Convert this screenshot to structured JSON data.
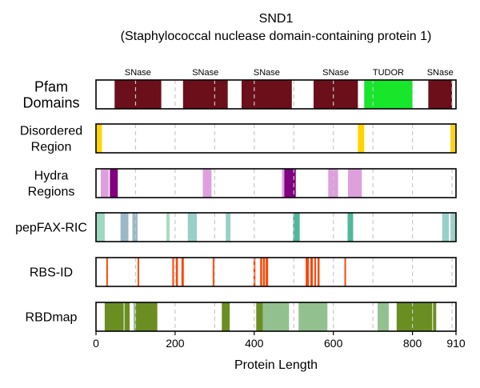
{
  "chart_data": {
    "type": "feature-track",
    "title": "SND1",
    "subtitle": "(Staphylococcal nuclease domain-containing protein 1)",
    "xlabel": "Protein Length",
    "xlim": [
      0,
      910
    ],
    "x_ticks": [
      0,
      200,
      400,
      600,
      800,
      910
    ],
    "gridlines": [
      100,
      200,
      300,
      400,
      500,
      600,
      700,
      800,
      900
    ],
    "tracks": [
      {
        "label_lines": [
          "Pfam",
          "Domains"
        ],
        "big_label": true,
        "segments": [
          {
            "start": 47,
            "end": 165,
            "color": "#6b0f1a",
            "label": "SNase"
          },
          {
            "start": 220,
            "end": 333,
            "color": "#6b0f1a",
            "label": "SNase"
          },
          {
            "start": 368,
            "end": 495,
            "color": "#6b0f1a",
            "label": "SNase"
          },
          {
            "start": 550,
            "end": 662,
            "color": "#6b0f1a",
            "label": "SNase"
          },
          {
            "start": 678,
            "end": 800,
            "color": "#17e62b",
            "label": "TUDOR"
          },
          {
            "start": 840,
            "end": 900,
            "color": "#6b0f1a",
            "label": "SNase"
          }
        ]
      },
      {
        "label_lines": [
          "Disordered",
          "Region"
        ],
        "segments": [
          {
            "start": 0,
            "end": 15,
            "color": "#ffd500"
          },
          {
            "start": 662,
            "end": 678,
            "color": "#ffd500"
          },
          {
            "start": 896,
            "end": 910,
            "color": "#ffd500"
          }
        ]
      },
      {
        "label_lines": [
          "Hydra",
          "Regions"
        ],
        "segments": [
          {
            "start": 12,
            "end": 32,
            "color": "#dda0dd"
          },
          {
            "start": 35,
            "end": 55,
            "color": "#800080"
          },
          {
            "start": 270,
            "end": 292,
            "color": "#dda0dd"
          },
          {
            "start": 470,
            "end": 476,
            "color": "#dda0dd"
          },
          {
            "start": 476,
            "end": 505,
            "color": "#800080"
          },
          {
            "start": 587,
            "end": 612,
            "color": "#dda0dd"
          },
          {
            "start": 637,
            "end": 672,
            "color": "#dda0dd"
          }
        ]
      },
      {
        "label_lines": [
          "pepFAX-RIC"
        ],
        "segments": [
          {
            "start": 0,
            "end": 22,
            "color": "#9fd8c2"
          },
          {
            "start": 62,
            "end": 82,
            "color": "#9ab8c8"
          },
          {
            "start": 92,
            "end": 105,
            "color": "#9ab8c8"
          },
          {
            "start": 178,
            "end": 186,
            "color": "#a8dcc0"
          },
          {
            "start": 232,
            "end": 255,
            "color": "#98d0c8"
          },
          {
            "start": 328,
            "end": 340,
            "color": "#98d0c8"
          },
          {
            "start": 498,
            "end": 515,
            "color": "#4fb89a"
          },
          {
            "start": 636,
            "end": 650,
            "color": "#4fb89a"
          },
          {
            "start": 875,
            "end": 892,
            "color": "#98d0c8"
          },
          {
            "start": 896,
            "end": 910,
            "color": "#98d0c8"
          }
        ]
      },
      {
        "label_lines": [
          "RBS-ID"
        ],
        "segments": [
          {
            "start": 26,
            "end": 30,
            "color": "#ff4500"
          },
          {
            "start": 105,
            "end": 109,
            "color": "#ff4500"
          },
          {
            "start": 193,
            "end": 197,
            "color": "#ff4500"
          },
          {
            "start": 202,
            "end": 207,
            "color": "#ff4500"
          },
          {
            "start": 216,
            "end": 222,
            "color": "#ff4500"
          },
          {
            "start": 295,
            "end": 299,
            "color": "#ff4500"
          },
          {
            "start": 398,
            "end": 403,
            "color": "#ff4500"
          },
          {
            "start": 415,
            "end": 420,
            "color": "#ff4500"
          },
          {
            "start": 422,
            "end": 427,
            "color": "#ff4500"
          },
          {
            "start": 429,
            "end": 435,
            "color": "#ff4500"
          },
          {
            "start": 530,
            "end": 538,
            "color": "#ff4500"
          },
          {
            "start": 542,
            "end": 548,
            "color": "#ff4500"
          },
          {
            "start": 552,
            "end": 556,
            "color": "#ff4500"
          },
          {
            "start": 560,
            "end": 565,
            "color": "#ff4500"
          },
          {
            "start": 628,
            "end": 632,
            "color": "#ff4500"
          }
        ]
      },
      {
        "label_lines": [
          "RBDmap"
        ],
        "segments": [
          {
            "start": 22,
            "end": 70,
            "color": "#6b8e23"
          },
          {
            "start": 72,
            "end": 85,
            "color": "#6b8e23"
          },
          {
            "start": 95,
            "end": 100,
            "color": "#93c08f"
          },
          {
            "start": 100,
            "end": 155,
            "color": "#6b8e23"
          },
          {
            "start": 318,
            "end": 338,
            "color": "#6b8e23"
          },
          {
            "start": 405,
            "end": 422,
            "color": "#6b8e23"
          },
          {
            "start": 422,
            "end": 488,
            "color": "#93c08f"
          },
          {
            "start": 512,
            "end": 585,
            "color": "#93c08f"
          },
          {
            "start": 712,
            "end": 740,
            "color": "#93c08f"
          },
          {
            "start": 760,
            "end": 850,
            "color": "#6b8e23"
          },
          {
            "start": 852,
            "end": 860,
            "color": "#6b8e23"
          }
        ]
      }
    ]
  }
}
